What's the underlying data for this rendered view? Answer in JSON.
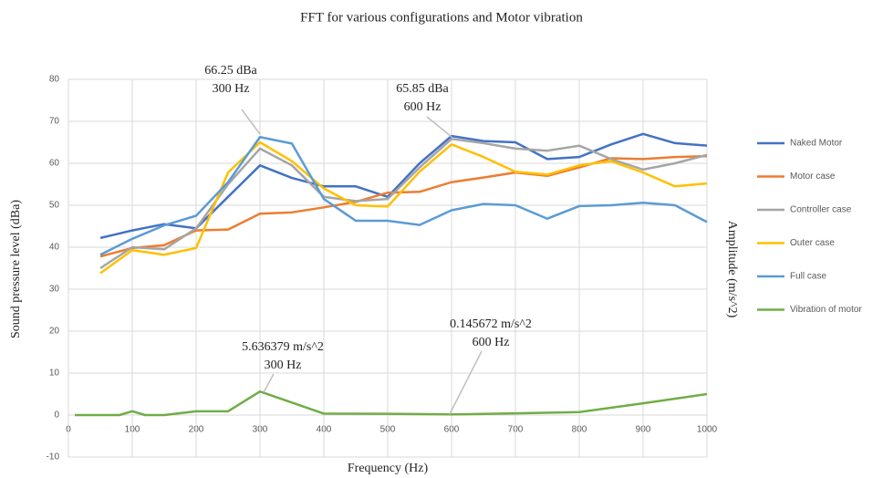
{
  "chart_data": {
    "type": "line",
    "title": "FFT for various configurations and Motor vibration",
    "x_label": "Frequency (Hz)",
    "y_label": "Sound pressure level (dBa)",
    "y2_label": "Amplitude (m/s^2)",
    "xlim": [
      0,
      1000
    ],
    "xticks": [
      0,
      100,
      200,
      300,
      400,
      500,
      600,
      700,
      800,
      900,
      1000
    ],
    "ylim": [
      -10,
      80
    ],
    "yticks": [
      -10,
      0,
      10,
      20,
      30,
      40,
      50,
      60,
      70,
      80
    ],
    "grid": true,
    "legend": "right",
    "x": [
      50,
      100,
      150,
      200,
      250,
      300,
      350,
      400,
      450,
      500,
      550,
      600,
      650,
      700,
      750,
      800,
      850,
      900,
      950,
      1000
    ],
    "series": [
      {
        "name": "Naked Motor",
        "color": "#4472c4",
        "values": [
          42.2,
          44,
          45.5,
          44.5,
          52,
          59.5,
          56.5,
          54.5,
          54.5,
          52,
          60,
          66.5,
          65.3,
          65,
          61,
          61.5,
          64.5,
          67,
          64.8,
          64.2
        ]
      },
      {
        "name": "Motor case",
        "color": "#ed7d31",
        "values": [
          37.8,
          39.8,
          40.5,
          44,
          44.2,
          48,
          48.3,
          49.5,
          50.8,
          53,
          53.2,
          55.5,
          56.6,
          57.8,
          57,
          59,
          61.2,
          61,
          61.5,
          61.7
        ]
      },
      {
        "name": "Controller case",
        "color": "#a5a5a5",
        "values": [
          35,
          40,
          39.5,
          44.5,
          55,
          63.5,
          59.5,
          52,
          51,
          51.5,
          59,
          65.8,
          64.8,
          63.5,
          63,
          64.2,
          61,
          58.5,
          60,
          62
        ]
      },
      {
        "name": "Outer case",
        "color": "#ffc000",
        "values": [
          33.8,
          39.3,
          38.2,
          39.8,
          57.8,
          65,
          60.5,
          54,
          50,
          49.7,
          58,
          64.5,
          61.5,
          58,
          57.3,
          59.5,
          60.5,
          57.8,
          54.5,
          55.2
        ]
      },
      {
        "name": "Full case",
        "color": "#5b9bd5",
        "values": [
          38.2,
          42,
          45.2,
          47.5,
          55.5,
          66.25,
          64.7,
          51.5,
          46.3,
          46.3,
          45.3,
          48.8,
          50.3,
          50,
          46.8,
          49.8,
          50,
          50.6,
          50,
          46
        ]
      },
      {
        "name": "Vibration of motor",
        "color": "#70ad47",
        "x": [
          10,
          80,
          100,
          120,
          150,
          200,
          250,
          300,
          400,
          500,
          600,
          700,
          800,
          900,
          1000
        ],
        "values": [
          0,
          0,
          0.9,
          0,
          0,
          0.9,
          0.9,
          5.6,
          0.35,
          0.3,
          0.15,
          0.4,
          0.7,
          2.8,
          5
        ]
      }
    ],
    "annotations": [
      {
        "lines": [
          "66.25 dBa",
          "300 Hz"
        ]
      },
      {
        "lines": [
          "65.85 dBa",
          "600 Hz"
        ]
      },
      {
        "lines": [
          "5.636379 m/s^2",
          "300 Hz"
        ]
      },
      {
        "lines": [
          "0.145672 m/s^2",
          "600 Hz"
        ]
      }
    ]
  }
}
